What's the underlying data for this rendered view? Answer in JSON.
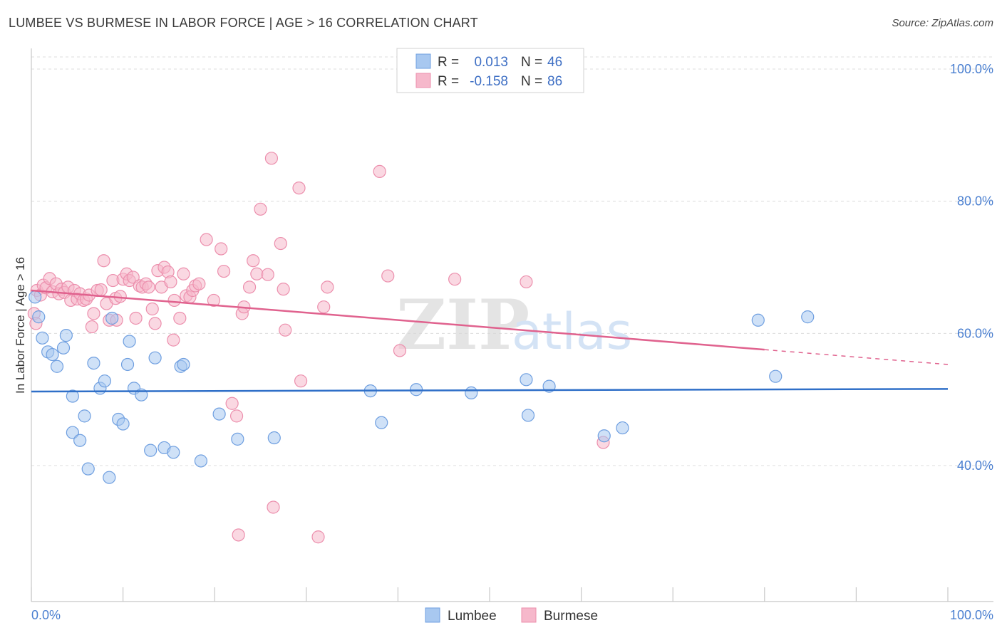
{
  "header": {
    "title": "LUMBEE VS BURMESE IN LABOR FORCE | AGE > 16 CORRELATION CHART",
    "source": "Source: ZipAtlas.com"
  },
  "watermark": {
    "zip": "ZIP",
    "atlas": "atlas"
  },
  "colors": {
    "lumbee_fill": "#a8c8f0",
    "lumbee_stroke": "#6f9fe0",
    "lumbee_line": "#2f6fc8",
    "burmese_fill": "#f6b8cb",
    "burmese_stroke": "#ec8fad",
    "burmese_line": "#e0628e",
    "grid": "#dcdcdc",
    "axis_label": "#4a7fd0"
  },
  "legend": {
    "rows": [
      {
        "r_label": "R =",
        "r_value": "0.013",
        "n_label": "N =",
        "n_value": "46"
      },
      {
        "r_label": "R =",
        "r_value": "-0.158",
        "n_label": "N =",
        "n_value": "86"
      }
    ]
  },
  "chart_data": {
    "type": "scatter",
    "title": "LUMBEE VS BURMESE IN LABOR FORCE | AGE > 16 CORRELATION CHART",
    "xlabel": "",
    "ylabel": "In Labor Force | Age > 16",
    "xlim": [
      0,
      100
    ],
    "ylim": [
      20,
      102
    ],
    "x_tick_labels": [
      "0.0%",
      "100.0%"
    ],
    "y_ticks": [
      40,
      60,
      80,
      100
    ],
    "y_tick_labels": [
      "40.0%",
      "60.0%",
      "80.0%",
      "100.0%"
    ],
    "legend_position": "top-center",
    "series": [
      {
        "name": "Lumbee",
        "trend": {
          "x": [
            0,
            100
          ],
          "y": [
            51.2,
            51.6
          ],
          "dashed_from": null
        },
        "points": [
          [
            0.4,
            65.5
          ],
          [
            0.8,
            62.5
          ],
          [
            1.2,
            59.3
          ],
          [
            1.8,
            57.2
          ],
          [
            2.3,
            56.8
          ],
          [
            2.8,
            55.0
          ],
          [
            3.5,
            57.8
          ],
          [
            3.8,
            59.7
          ],
          [
            4.5,
            50.5
          ],
          [
            4.5,
            45.0
          ],
          [
            5.3,
            43.8
          ],
          [
            5.8,
            47.5
          ],
          [
            6.2,
            39.5
          ],
          [
            6.8,
            55.5
          ],
          [
            7.5,
            51.7
          ],
          [
            8.0,
            52.8
          ],
          [
            8.5,
            38.2
          ],
          [
            8.8,
            62.3
          ],
          [
            9.5,
            47.0
          ],
          [
            10.0,
            46.3
          ],
          [
            10.5,
            55.3
          ],
          [
            10.7,
            58.8
          ],
          [
            11.2,
            51.7
          ],
          [
            12.0,
            50.7
          ],
          [
            13.0,
            42.3
          ],
          [
            13.5,
            56.3
          ],
          [
            14.5,
            42.7
          ],
          [
            15.5,
            42.0
          ],
          [
            16.3,
            55.0
          ],
          [
            16.6,
            55.3
          ],
          [
            18.5,
            40.7
          ],
          [
            20.5,
            47.8
          ],
          [
            22.5,
            44.0
          ],
          [
            26.5,
            44.2
          ],
          [
            37.0,
            51.3
          ],
          [
            38.2,
            46.5
          ],
          [
            42.0,
            51.5
          ],
          [
            48.0,
            51.0
          ],
          [
            54.0,
            53.0
          ],
          [
            54.2,
            47.6
          ],
          [
            56.5,
            52.0
          ],
          [
            62.5,
            44.5
          ],
          [
            64.5,
            45.7
          ],
          [
            79.3,
            62.0
          ],
          [
            81.2,
            53.5
          ],
          [
            84.7,
            62.5
          ]
        ]
      },
      {
        "name": "Burmese",
        "trend": {
          "x": [
            0,
            100
          ],
          "y": [
            66.5,
            55.3
          ],
          "dashed_from": 80
        },
        "points": [
          [
            0.3,
            63.0
          ],
          [
            0.6,
            66.5
          ],
          [
            1.0,
            65.8
          ],
          [
            1.3,
            67.3
          ],
          [
            1.6,
            66.9
          ],
          [
            2.0,
            68.3
          ],
          [
            2.3,
            66.3
          ],
          [
            2.7,
            67.5
          ],
          [
            3.0,
            66.0
          ],
          [
            3.3,
            66.7
          ],
          [
            3.6,
            66.2
          ],
          [
            4.0,
            67.0
          ],
          [
            4.3,
            65.0
          ],
          [
            4.7,
            66.5
          ],
          [
            5.0,
            65.2
          ],
          [
            5.3,
            66.0
          ],
          [
            5.7,
            65.0
          ],
          [
            6.0,
            65.2
          ],
          [
            6.3,
            65.8
          ],
          [
            6.6,
            61.0
          ],
          [
            6.8,
            63.0
          ],
          [
            7.2,
            66.5
          ],
          [
            7.6,
            66.6
          ],
          [
            7.9,
            71.0
          ],
          [
            8.2,
            64.5
          ],
          [
            8.5,
            62.0
          ],
          [
            8.9,
            68.0
          ],
          [
            9.2,
            65.3
          ],
          [
            9.3,
            62.0
          ],
          [
            9.7,
            65.6
          ],
          [
            10.0,
            68.2
          ],
          [
            10.4,
            69.0
          ],
          [
            10.7,
            68.0
          ],
          [
            11.1,
            68.5
          ],
          [
            11.4,
            62.3
          ],
          [
            11.8,
            67.2
          ],
          [
            12.1,
            67.0
          ],
          [
            12.5,
            67.5
          ],
          [
            12.8,
            67.0
          ],
          [
            13.2,
            63.7
          ],
          [
            13.5,
            61.5
          ],
          [
            13.8,
            69.5
          ],
          [
            14.2,
            67.0
          ],
          [
            14.5,
            70.0
          ],
          [
            14.9,
            69.3
          ],
          [
            15.2,
            67.8
          ],
          [
            15.5,
            59.0
          ],
          [
            15.6,
            65.0
          ],
          [
            16.2,
            62.3
          ],
          [
            16.6,
            69.0
          ],
          [
            16.9,
            65.7
          ],
          [
            17.3,
            65.5
          ],
          [
            17.6,
            66.5
          ],
          [
            17.9,
            67.2
          ],
          [
            18.3,
            67.5
          ],
          [
            19.1,
            74.2
          ],
          [
            19.9,
            65.0
          ],
          [
            20.7,
            72.8
          ],
          [
            21.0,
            69.4
          ],
          [
            21.9,
            49.4
          ],
          [
            22.4,
            47.5
          ],
          [
            22.6,
            29.5
          ],
          [
            23.0,
            63.0
          ],
          [
            23.2,
            64.0
          ],
          [
            23.8,
            67.0
          ],
          [
            24.2,
            71.0
          ],
          [
            24.6,
            69.0
          ],
          [
            25.0,
            78.8
          ],
          [
            25.8,
            68.9
          ],
          [
            26.2,
            86.5
          ],
          [
            26.4,
            33.7
          ],
          [
            27.2,
            73.6
          ],
          [
            27.5,
            66.7
          ],
          [
            27.7,
            60.5
          ],
          [
            29.2,
            82.0
          ],
          [
            29.4,
            52.8
          ],
          [
            31.3,
            29.2
          ],
          [
            31.9,
            64.0
          ],
          [
            32.3,
            67.0
          ],
          [
            38.0,
            84.5
          ],
          [
            38.9,
            68.7
          ],
          [
            40.2,
            57.4
          ],
          [
            46.2,
            68.2
          ],
          [
            54.0,
            67.8
          ],
          [
            62.4,
            43.5
          ],
          [
            0.5,
            61.5
          ]
        ]
      }
    ]
  },
  "bottom_legend": {
    "items": [
      {
        "label": "Lumbee"
      },
      {
        "label": "Burmese"
      }
    ]
  }
}
